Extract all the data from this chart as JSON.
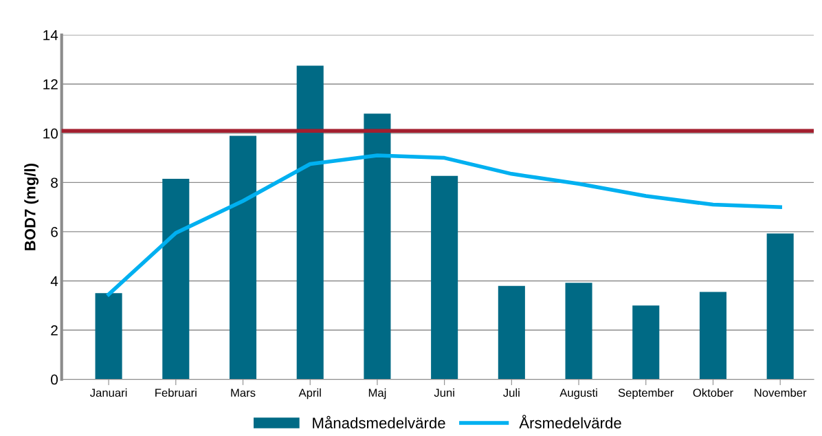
{
  "chart_data": {
    "type": "bar",
    "ylabel": "BOD7 (mg/l)",
    "categories": [
      "Januari",
      "Februari",
      "Mars",
      "April",
      "Maj",
      "Juni",
      "Juli",
      "Augusti",
      "September",
      "Oktober",
      "November"
    ],
    "series": [
      {
        "name": "Månadsmedelvärde",
        "color": "#006a85",
        "values": [
          3.5,
          8.15,
          9.9,
          12.75,
          10.8,
          8.27,
          3.8,
          3.92,
          3.0,
          3.55,
          5.93
        ]
      },
      {
        "name": "Årsmedelvärde",
        "type": "line",
        "color": "#00b0f0",
        "values": [
          3.45,
          5.95,
          7.25,
          8.75,
          9.1,
          9.0,
          8.35,
          7.95,
          7.45,
          7.1,
          7.0
        ]
      }
    ],
    "ref_lines": [
      {
        "axis": "y",
        "value": 10.1,
        "label": null,
        "color": "#a31f2f"
      }
    ],
    "ylim": [
      0,
      14
    ],
    "yticks": [
      0,
      2,
      4,
      6,
      8,
      10,
      12,
      14
    ],
    "grid": "y",
    "legend": "bottom"
  }
}
